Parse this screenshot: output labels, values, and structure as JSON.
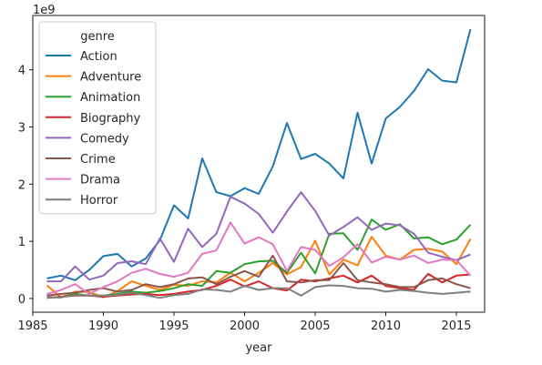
{
  "chart_data": {
    "type": "line",
    "xlabel": "year",
    "ylabel": "",
    "y_offset_label": "1e9",
    "xlim": [
      1985,
      2017
    ],
    "ylim": [
      -0.24,
      4.95
    ],
    "x_ticks": [
      1985,
      1990,
      1995,
      2000,
      2005,
      2010,
      2015
    ],
    "y_ticks": [
      0,
      1,
      2,
      3,
      4
    ],
    "legend_title": "genre",
    "legend_position": "upper-left",
    "grid": false,
    "x": [
      1986,
      1987,
      1988,
      1989,
      1990,
      1991,
      1992,
      1993,
      1994,
      1995,
      1996,
      1997,
      1998,
      1999,
      2000,
      2001,
      2002,
      2003,
      2004,
      2005,
      2006,
      2007,
      2008,
      2009,
      2010,
      2011,
      2012,
      2013,
      2014,
      2015,
      2016
    ],
    "series": [
      {
        "name": "Action",
        "color": "#1f77b4",
        "values": [
          0.35,
          0.4,
          0.32,
          0.5,
          0.74,
          0.78,
          0.56,
          0.7,
          1.02,
          1.63,
          1.4,
          2.45,
          1.86,
          1.79,
          1.93,
          1.83,
          2.31,
          3.07,
          2.44,
          2.53,
          2.36,
          2.1,
          3.25,
          2.36,
          3.15,
          3.35,
          3.63,
          4.01,
          3.81,
          3.78,
          4.71
        ]
      },
      {
        "name": "Adventure",
        "color": "#ff7f0e",
        "values": [
          0.23,
          0.02,
          0.12,
          0.11,
          0.02,
          0.13,
          0.3,
          0.22,
          0.15,
          0.24,
          0.22,
          0.3,
          0.28,
          0.45,
          0.3,
          0.45,
          0.62,
          0.42,
          0.55,
          1.01,
          0.42,
          0.68,
          0.58,
          1.08,
          0.75,
          0.68,
          0.85,
          0.87,
          0.82,
          0.6,
          1.04
        ]
      },
      {
        "name": "Animation",
        "color": "#2ca02c",
        "values": [
          0.02,
          0.02,
          0.08,
          0.05,
          0.05,
          0.08,
          0.12,
          0.1,
          0.13,
          0.18,
          0.25,
          0.22,
          0.48,
          0.45,
          0.6,
          0.65,
          0.66,
          0.45,
          0.8,
          0.44,
          1.13,
          1.14,
          0.85,
          1.38,
          1.2,
          1.3,
          1.05,
          1.07,
          0.95,
          1.03,
          1.29
        ]
      },
      {
        "name": "Biography",
        "color": "#d62728",
        "values": [
          0.01,
          0.03,
          0.05,
          0.05,
          0.03,
          0.05,
          0.07,
          0.08,
          0.06,
          0.08,
          0.12,
          0.15,
          0.22,
          0.33,
          0.21,
          0.3,
          0.18,
          0.14,
          0.33,
          0.3,
          0.35,
          0.4,
          0.28,
          0.4,
          0.22,
          0.18,
          0.15,
          0.43,
          0.28,
          0.4,
          0.42
        ]
      },
      {
        "name": "Comedy",
        "color": "#9467bd",
        "values": [
          0.3,
          0.3,
          0.56,
          0.33,
          0.4,
          0.62,
          0.65,
          0.6,
          1.05,
          0.64,
          1.22,
          0.9,
          1.13,
          1.78,
          1.66,
          1.48,
          1.15,
          1.52,
          1.86,
          1.53,
          1.1,
          1.25,
          1.42,
          1.2,
          1.31,
          1.28,
          1.13,
          0.8,
          0.73,
          0.67,
          0.77
        ]
      },
      {
        "name": "Crime",
        "color": "#8c564b",
        "values": [
          0.05,
          0.08,
          0.1,
          0.15,
          0.18,
          0.12,
          0.15,
          0.25,
          0.2,
          0.25,
          0.35,
          0.37,
          0.25,
          0.38,
          0.48,
          0.38,
          0.75,
          0.3,
          0.28,
          0.32,
          0.32,
          0.62,
          0.32,
          0.28,
          0.25,
          0.2,
          0.2,
          0.32,
          0.35,
          0.25,
          0.18
        ]
      },
      {
        "name": "Drama",
        "color": "#e377c2",
        "values": [
          0.08,
          0.15,
          0.25,
          0.08,
          0.2,
          0.3,
          0.45,
          0.52,
          0.43,
          0.38,
          0.45,
          0.78,
          0.84,
          1.33,
          0.96,
          1.07,
          0.95,
          0.48,
          0.9,
          0.85,
          0.57,
          0.72,
          0.95,
          0.63,
          0.73,
          0.68,
          0.75,
          0.62,
          0.68,
          0.67,
          0.4
        ]
      },
      {
        "name": "Horror",
        "color": "#7f7f7f",
        "values": [
          0.02,
          0.02,
          0.06,
          0.05,
          0.05,
          0.06,
          0.1,
          0.06,
          0.01,
          0.06,
          0.08,
          0.16,
          0.15,
          0.12,
          0.22,
          0.15,
          0.18,
          0.18,
          0.05,
          0.2,
          0.23,
          0.22,
          0.18,
          0.17,
          0.12,
          0.15,
          0.13,
          0.1,
          0.08,
          0.1,
          0.12
        ]
      }
    ]
  }
}
